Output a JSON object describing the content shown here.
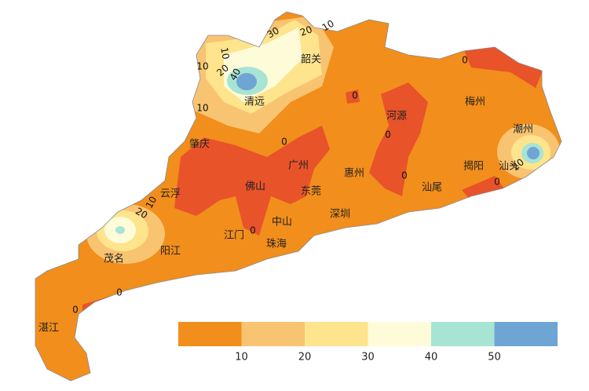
{
  "map": {
    "cities": [
      "清远",
      "韶关",
      "梅州",
      "河源",
      "潮州",
      "肇庆",
      "广州",
      "惠州",
      "揭阳",
      "汕头",
      "云浮",
      "佛山",
      "东莞",
      "汕尾",
      "中山",
      "深圳",
      "江门",
      "珠海",
      "阳江",
      "茂名",
      "湛江"
    ],
    "contour_labels": [
      10,
      20,
      30,
      10,
      10,
      20,
      40,
      0,
      10,
      0,
      0,
      0,
      0,
      0,
      0,
      10,
      20,
      0,
      20,
      0
    ]
  },
  "legend": {
    "colors": [
      "#f28e1c",
      "#f9c471",
      "#fde48d",
      "#fdfbd8",
      "#a8e4d4",
      "#6fa5d5"
    ],
    "ticks": [
      10,
      20,
      30,
      40,
      50
    ]
  }
}
